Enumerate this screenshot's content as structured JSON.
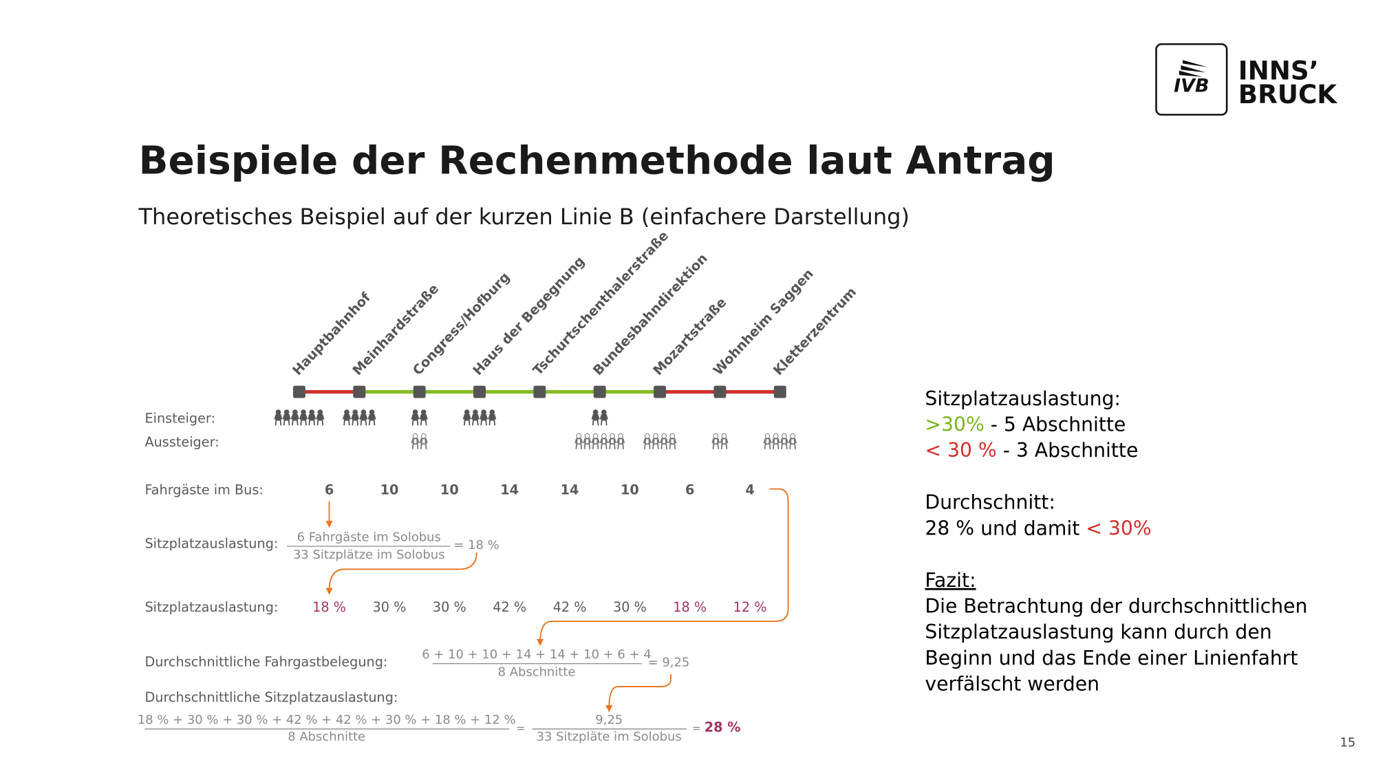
{
  "logo": {
    "brand": "IVB",
    "city_line1": "INNS’",
    "city_line2": "BRUCK"
  },
  "title": "Beispiele der Rechenmethode laut Antrag",
  "subtitle": "Theoretisches Beispiel auf der kurzen Linie B (einfachere Darstellung)",
  "diagram": {
    "stops": [
      "Hauptbahnhof",
      "Meinhardstraße",
      "Congress/Hofburg",
      "Haus der Begegnung",
      "Tschurtschenthalerstraße",
      "Bundesbahndirektion",
      "Mozartstraße",
      "Wohnheim Saggen",
      "Kletterzentrum"
    ],
    "segment_colors": [
      "#d0302a",
      "#86bc25",
      "#86bc25",
      "#86bc25",
      "#86bc25",
      "#86bc25",
      "#d0302a",
      "#d0302a"
    ],
    "boarding_label": "Einsteiger:",
    "alighting_label": "Aussteiger:",
    "boarding": [
      6,
      4,
      2,
      4,
      0,
      2,
      0,
      0,
      0
    ],
    "alighting": [
      0,
      0,
      2,
      0,
      0,
      6,
      4,
      2,
      4
    ],
    "passengers_label": "Fahrgäste im Bus:",
    "passengers": [
      6,
      10,
      10,
      14,
      14,
      10,
      6,
      4
    ],
    "example": {
      "label": "Sitzplatzauslastung:",
      "numerator": "6 Fahrgäste im Solobus",
      "denominator": "33 Sitzplätze im Solobus",
      "result": "= 18 %"
    },
    "utilization_label": "Sitzplatzauslastung:",
    "utilization": [
      {
        "text": "18 %",
        "color": "#a3325f"
      },
      {
        "text": "30 %",
        "color": "#5a5a5a"
      },
      {
        "text": "30 %",
        "color": "#5a5a5a"
      },
      {
        "text": "42 %",
        "color": "#5a5a5a"
      },
      {
        "text": "42 %",
        "color": "#5a5a5a"
      },
      {
        "text": "30 %",
        "color": "#5a5a5a"
      },
      {
        "text": "18 %",
        "color": "#a3325f"
      },
      {
        "text": "12 %",
        "color": "#a3325f"
      }
    ],
    "avg_passengers": {
      "label": "Durchschnittliche Fahrgastbelegung:",
      "numerator": "6 + 10 + 10 + 14 + 14 + 10 + 6 + 4",
      "denominator": "8 Abschnitte",
      "result": "= 9,25"
    },
    "avg_utilization": {
      "label": "Durchschnittliche Sitzplatzauslastung:",
      "numerator": "18 % + 30 % + 30 % + 42 % + 42 % + 30 % + 18 % + 12 %",
      "denominator": "8 Abschnitte",
      "equals": "=",
      "numerator2": "9,25",
      "denominator2": "33 Sitzpläte im Solobus",
      "equals2": "=",
      "result": "28 %"
    }
  },
  "sidebar": [
    [
      {
        "text": "Sitzplatzauslastung:",
        "color": "#000000"
      }
    ],
    [
      {
        "text": ">30%",
        "color": "#7ab51d"
      },
      {
        "text": " - 5 Abschnitte",
        "color": "#000000"
      }
    ],
    [
      {
        "text": "< 30 %",
        "color": "#d0302a"
      },
      {
        "text": " - 3 Abschnitte",
        "color": "#000000"
      }
    ],
    null,
    [
      {
        "text": "Durchschnitt:",
        "color": "#000000"
      }
    ],
    [
      {
        "text": "28 % und damit ",
        "color": "#000000"
      },
      {
        "text": "< 30%",
        "color": "#d0302a"
      }
    ],
    null,
    [
      {
        "text": "Fazit:",
        "color": "#000000",
        "underline": true
      }
    ],
    [
      {
        "text": "Die Betrachtung der durchschnittlichen",
        "color": "#000000"
      }
    ],
    [
      {
        "text": "Sitzplatzauslastung kann durch den",
        "color": "#000000"
      }
    ],
    [
      {
        "text": "Beginn und das Ende einer Linienfahrt",
        "color": "#000000"
      }
    ],
    [
      {
        "text": "verfälscht werden",
        "color": "#000000"
      }
    ]
  ],
  "page_number": "15"
}
